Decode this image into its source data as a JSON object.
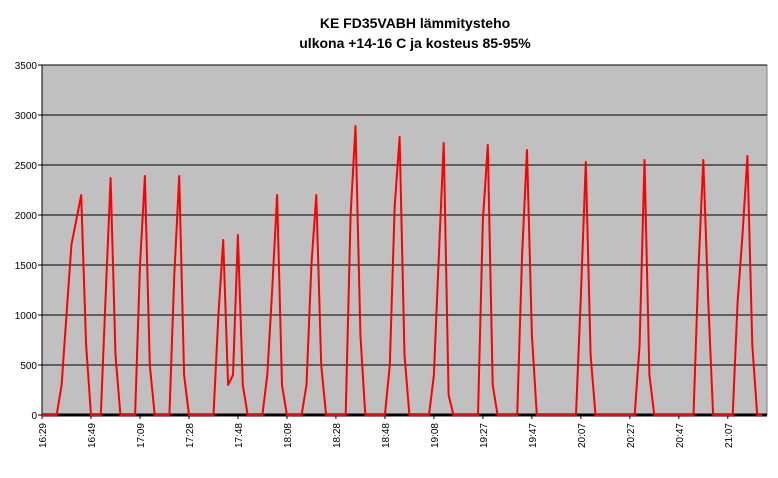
{
  "chart_data": {
    "type": "line",
    "title": "KE FD35VABH lämmitysteho",
    "subtitle": "ulkona +14-16 C ja kosteus 85-95%",
    "categories": [
      "16:29",
      null,
      null,
      null,
      null,
      null,
      null,
      null,
      null,
      null,
      "16:49",
      null,
      null,
      null,
      null,
      null,
      null,
      null,
      null,
      null,
      "17:09",
      null,
      null,
      null,
      null,
      null,
      null,
      null,
      null,
      null,
      "17:28",
      null,
      null,
      null,
      null,
      null,
      null,
      null,
      null,
      null,
      "17:48",
      null,
      null,
      null,
      null,
      null,
      null,
      null,
      null,
      null,
      "18:08",
      null,
      null,
      null,
      null,
      null,
      null,
      null,
      null,
      null,
      "18:28",
      null,
      null,
      null,
      null,
      null,
      null,
      null,
      null,
      null,
      "18:48",
      null,
      null,
      null,
      null,
      null,
      null,
      null,
      null,
      null,
      "19:08",
      null,
      null,
      null,
      null,
      null,
      null,
      null,
      null,
      null,
      "19:27",
      null,
      null,
      null,
      null,
      null,
      null,
      null,
      null,
      null,
      "19:47",
      null,
      null,
      null,
      null,
      null,
      null,
      null,
      null,
      null,
      "20:07",
      null,
      null,
      null,
      null,
      null,
      null,
      null,
      null,
      null,
      "20:27",
      null,
      null,
      null,
      null,
      null,
      null,
      null,
      null,
      null,
      "20:47",
      null,
      null,
      null,
      null,
      null,
      null,
      null,
      null,
      null,
      "21:07",
      null,
      null,
      null,
      null,
      null,
      null,
      null
    ],
    "series": [
      {
        "color": "#ff0000",
        "values": [
          0,
          0,
          0,
          0,
          300,
          1000,
          1700,
          1950,
          2200,
          700,
          0,
          0,
          0,
          1200,
          2370,
          600,
          0,
          0,
          0,
          0,
          1500,
          2390,
          500,
          0,
          0,
          0,
          0,
          1400,
          2390,
          400,
          0,
          0,
          0,
          0,
          0,
          0,
          1000,
          1750,
          300,
          400,
          1800,
          300,
          0,
          0,
          0,
          0,
          400,
          1250,
          2200,
          300,
          0,
          0,
          0,
          0,
          300,
          1500,
          2200,
          500,
          0,
          0,
          0,
          0,
          0,
          2000,
          2890,
          800,
          0,
          0,
          0,
          0,
          0,
          500,
          2090,
          2780,
          600,
          0,
          0,
          0,
          0,
          0,
          400,
          1580,
          2720,
          200,
          0,
          0,
          0,
          0,
          0,
          0,
          1950,
          2700,
          300,
          0,
          0,
          0,
          0,
          0,
          1600,
          2650,
          800,
          0,
          0,
          0,
          0,
          0,
          0,
          0,
          0,
          0,
          1200,
          2530,
          600,
          0,
          0,
          0,
          0,
          0,
          0,
          0,
          0,
          0,
          700,
          2550,
          400,
          0,
          0,
          0,
          0,
          0,
          0,
          0,
          0,
          0,
          1450,
          2550,
          1150,
          0,
          0,
          0,
          0,
          0,
          1130,
          1800,
          2590,
          700,
          0,
          0
        ]
      }
    ],
    "ylim": [
      0,
      3500
    ],
    "yticks": [
      0,
      500,
      1000,
      1500,
      2000,
      2500,
      3000,
      3500
    ],
    "grid": true
  }
}
